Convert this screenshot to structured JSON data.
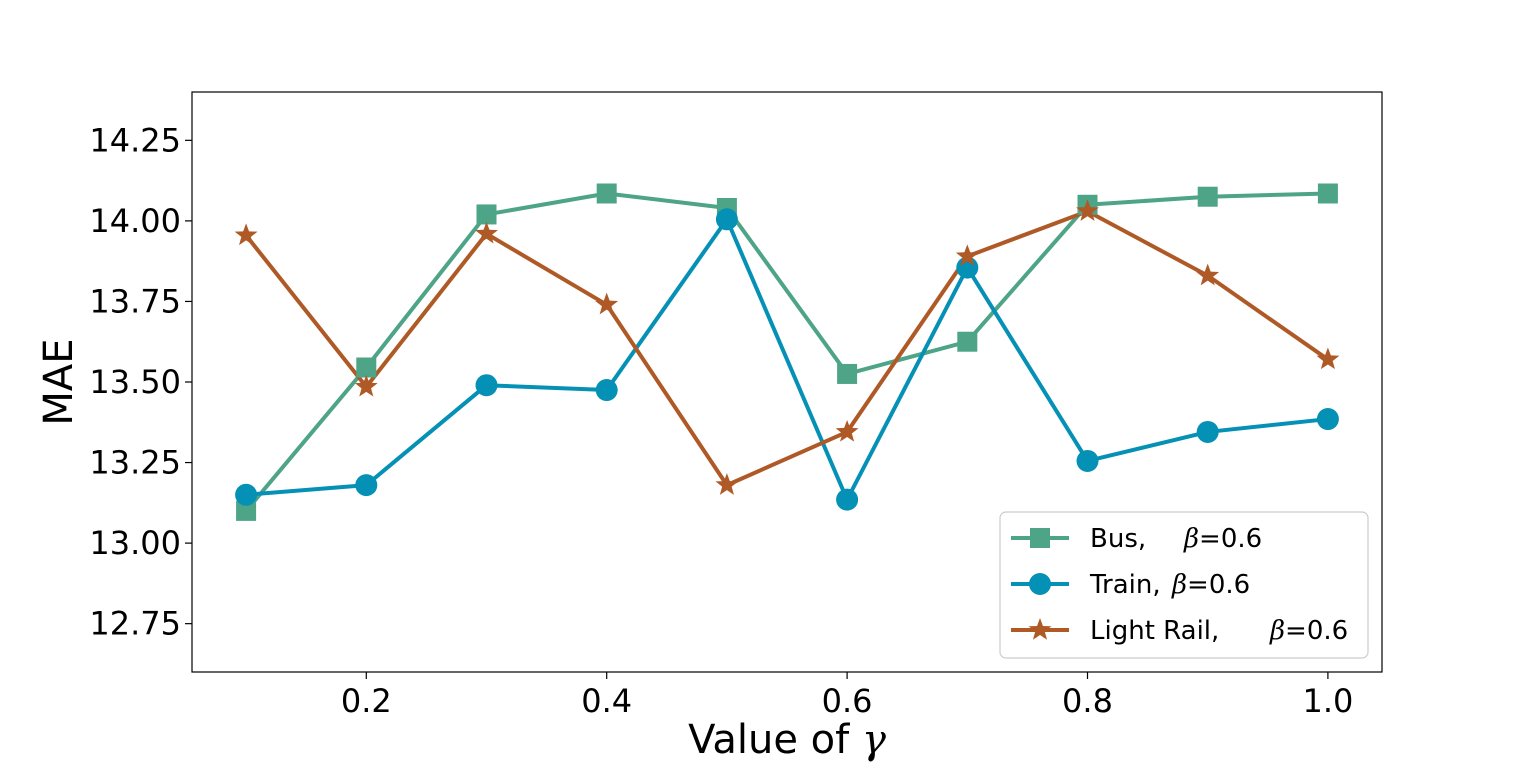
{
  "chart_data": {
    "type": "line",
    "title": "",
    "xlabel_prefix": "Value of ",
    "xlabel_symbol": "γ",
    "ylabel": "MAE",
    "xlim": [
      0.055,
      1.045
    ],
    "ylim": [
      12.6,
      14.4
    ],
    "xticks": [
      0.2,
      0.4,
      0.6,
      0.8,
      1.0
    ],
    "xtick_labels": [
      "0.2",
      "0.4",
      "0.6",
      "0.8",
      "1.0"
    ],
    "yticks": [
      12.75,
      13.0,
      13.25,
      13.5,
      13.75,
      14.0,
      14.25
    ],
    "ytick_labels": [
      "12.75",
      "13.00",
      "13.25",
      "13.50",
      "13.75",
      "14.00",
      "14.25"
    ],
    "x": [
      0.1,
      0.2,
      0.3,
      0.4,
      0.5,
      0.6,
      0.7,
      0.8,
      0.9,
      1.0
    ],
    "legend_position": "lower-right",
    "grid": false,
    "series": [
      {
        "name": "Bus,",
        "beta_symbol": "β",
        "beta_value": "=0.6",
        "color": "#4ea487",
        "marker": "square",
        "values": [
          13.1,
          13.545,
          14.02,
          14.085,
          14.04,
          13.525,
          13.625,
          14.05,
          14.075,
          14.085
        ]
      },
      {
        "name": "Train,",
        "beta_symbol": "β",
        "beta_value": "=0.6",
        "color": "#0590b6",
        "marker": "circle",
        "values": [
          13.15,
          13.18,
          13.49,
          13.475,
          14.005,
          13.135,
          13.855,
          13.255,
          13.345,
          13.385
        ]
      },
      {
        "name": "Light Rail,",
        "beta_symbol": "β",
        "beta_value": "=0.6",
        "color": "#af5a26",
        "marker": "star",
        "values": [
          13.955,
          13.485,
          13.96,
          13.74,
          13.18,
          13.345,
          13.89,
          14.03,
          13.83,
          13.57
        ]
      }
    ]
  }
}
